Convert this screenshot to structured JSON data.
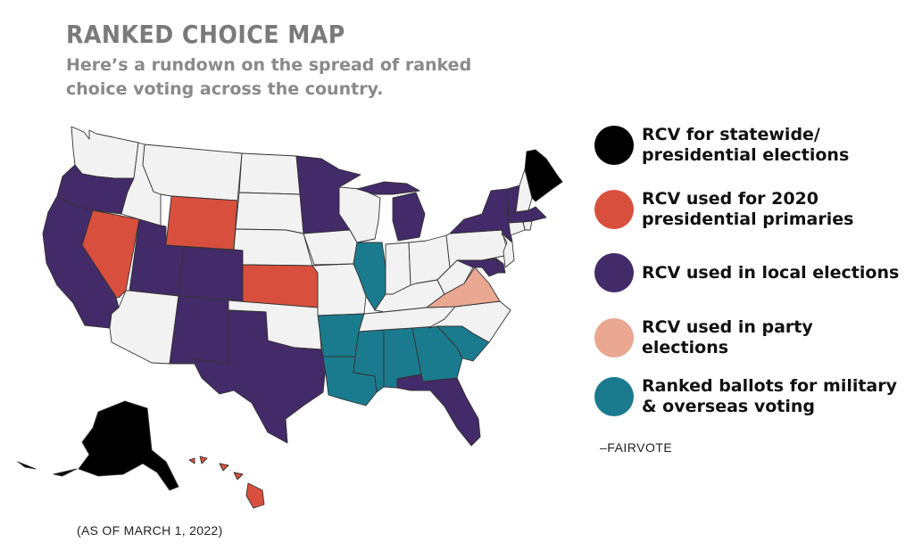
{
  "title": "RANKED CHOICE MAP",
  "subtitle": "Here’s a rundown on the spread of ranked choice voting across the country.",
  "legend": [
    {
      "label": "RCV for statewide/\npresidential elections",
      "color": "#000000"
    },
    {
      "label": "RCV used for 2020\npresidential primaries",
      "color": "#d94f3d"
    },
    {
      "label": "RCV used in local elections",
      "color": "#432a68"
    },
    {
      "label": "RCV used in party\nelections",
      "color": "#eaa792"
    },
    {
      "label": "Ranked ballots for military\n& overseas voting",
      "color": "#1b7b8e"
    }
  ],
  "source": "–FAIRVOTE",
  "date_note": "(AS OF MARCH 1, 2022)",
  "colors": {
    "statewide": "#000000",
    "primaries": "#d94f3d",
    "local": "#432a68",
    "party": "#eaa792",
    "military": "#1b7b8e",
    "none": "#f2f2f2"
  },
  "states": [
    {
      "name": "Washington",
      "category": "none"
    },
    {
      "name": "Oregon",
      "category": "local"
    },
    {
      "name": "California",
      "category": "local"
    },
    {
      "name": "Nevada",
      "category": "primaries"
    },
    {
      "name": "Idaho",
      "category": "none"
    },
    {
      "name": "Montana",
      "category": "none"
    },
    {
      "name": "Wyoming",
      "category": "primaries"
    },
    {
      "name": "Utah",
      "category": "local"
    },
    {
      "name": "Arizona",
      "category": "none"
    },
    {
      "name": "Colorado",
      "category": "local"
    },
    {
      "name": "New Mexico",
      "category": "local"
    },
    {
      "name": "North Dakota",
      "category": "none"
    },
    {
      "name": "South Dakota",
      "category": "none"
    },
    {
      "name": "Nebraska",
      "category": "none"
    },
    {
      "name": "Kansas",
      "category": "primaries"
    },
    {
      "name": "Oklahoma",
      "category": "none"
    },
    {
      "name": "Texas",
      "category": "local"
    },
    {
      "name": "Minnesota",
      "category": "local"
    },
    {
      "name": "Iowa",
      "category": "none"
    },
    {
      "name": "Missouri",
      "category": "none"
    },
    {
      "name": "Arkansas",
      "category": "military"
    },
    {
      "name": "Louisiana",
      "category": "military"
    },
    {
      "name": "Wisconsin",
      "category": "none"
    },
    {
      "name": "Illinois",
      "category": "military"
    },
    {
      "name": "Michigan",
      "category": "local"
    },
    {
      "name": "Indiana",
      "category": "none"
    },
    {
      "name": "Ohio",
      "category": "none"
    },
    {
      "name": "Kentucky",
      "category": "none"
    },
    {
      "name": "Tennessee",
      "category": "none"
    },
    {
      "name": "Mississippi",
      "category": "military"
    },
    {
      "name": "Alabama",
      "category": "military"
    },
    {
      "name": "Georgia",
      "category": "military"
    },
    {
      "name": "Florida",
      "category": "local"
    },
    {
      "name": "South Carolina",
      "category": "military"
    },
    {
      "name": "North Carolina",
      "category": "none"
    },
    {
      "name": "Virginia",
      "category": "party"
    },
    {
      "name": "West Virginia",
      "category": "none"
    },
    {
      "name": "Pennsylvania",
      "category": "none"
    },
    {
      "name": "New York",
      "category": "local"
    },
    {
      "name": "Vermont",
      "category": "local"
    },
    {
      "name": "New Hampshire",
      "category": "none"
    },
    {
      "name": "Maine",
      "category": "statewide"
    },
    {
      "name": "Massachusetts",
      "category": "local"
    },
    {
      "name": "Rhode Island",
      "category": "none"
    },
    {
      "name": "Connecticut",
      "category": "none"
    },
    {
      "name": "New Jersey",
      "category": "none"
    },
    {
      "name": "Delaware",
      "category": "local"
    },
    {
      "name": "Maryland",
      "category": "local"
    },
    {
      "name": "Alaska",
      "category": "statewide"
    },
    {
      "name": "Hawaii",
      "category": "primaries"
    }
  ]
}
